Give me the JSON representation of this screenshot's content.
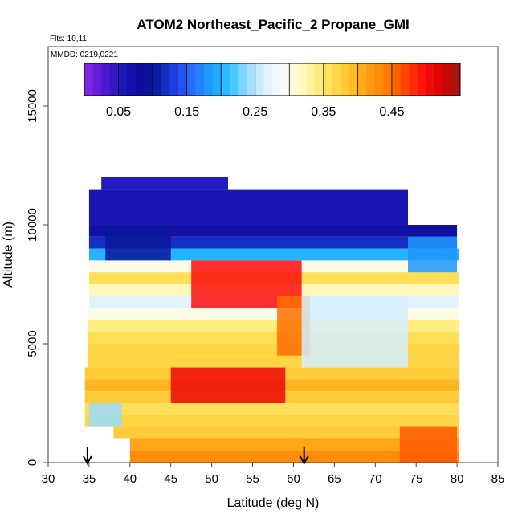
{
  "chart_data": {
    "type": "heatmap",
    "title": "ATOM2 Northeast_Pacific_2 Propane_GMI",
    "annotations": {
      "flights": "Flts: 10,11",
      "dates": "MMDD: 0219,0221"
    },
    "xlabel": "Latitude (deg N)",
    "ylabel": "Altitude (m)",
    "xlim": [
      30,
      85
    ],
    "ylim": [
      0,
      17500
    ],
    "xticks": [
      30,
      35,
      40,
      45,
      50,
      55,
      60,
      65,
      70,
      75,
      80,
      85
    ],
    "yticks": [
      0,
      5000,
      10000,
      15000
    ],
    "grid": false,
    "colorbar": {
      "placement": "top-inside",
      "range": [
        0.0,
        0.55
      ],
      "tick_values": [
        0.05,
        0.15,
        0.25,
        0.35,
        0.45
      ],
      "tick_labels": [
        "0.05",
        "0.15",
        "0.25",
        "0.35",
        "0.45"
      ],
      "colors": [
        "#8a2be2",
        "#5a18d8",
        "#1e1ac0",
        "#0c0c9a",
        "#0a1a9c",
        "#1d3de0",
        "#2a6cff",
        "#1d9dff",
        "#2ac0ff",
        "#8ed8ff",
        "#d8f0ff",
        "#f7fbff",
        "#fffacc",
        "#ffee80",
        "#ffd84a",
        "#ffbe26",
        "#ff9a12",
        "#ff7a00",
        "#ff4000",
        "#ff0e0e",
        "#d80000",
        "#9e1a1a"
      ]
    },
    "layers": [
      {
        "alt": [
          11500,
          12000
        ],
        "lat": [
          36.5,
          52
        ],
        "value": 0.05
      },
      {
        "alt": [
          10000,
          11500
        ],
        "lat": [
          35.0,
          74.0
        ],
        "value": 0.06
      },
      {
        "alt": [
          9500,
          10000
        ],
        "lat": [
          35.0,
          80.0
        ],
        "value": 0.07
      },
      {
        "alt": [
          9000,
          9500
        ],
        "lat": [
          35.0,
          80.0
        ],
        "value": 0.12
      },
      {
        "alt": [
          8500,
          9000
        ],
        "lat": [
          35.0,
          80.2
        ],
        "value": 0.2
      },
      {
        "alt": [
          8000,
          8500
        ],
        "lat": [
          35.0,
          80.2
        ],
        "value": 0.3
      },
      {
        "alt": [
          7500,
          8000
        ],
        "lat": [
          35.0,
          80.2
        ],
        "value": 0.36
      },
      {
        "alt": [
          7000,
          7500
        ],
        "lat": [
          35.0,
          80.2
        ],
        "value": 0.32
      },
      {
        "alt": [
          6500,
          7000
        ],
        "lat": [
          35.0,
          80.2
        ],
        "value": 0.27
      },
      {
        "alt": [
          6000,
          6500
        ],
        "lat": [
          34.8,
          80.2
        ],
        "value": 0.3
      },
      {
        "alt": [
          5500,
          6000
        ],
        "lat": [
          34.8,
          80.2
        ],
        "value": 0.34
      },
      {
        "alt": [
          5000,
          5500
        ],
        "lat": [
          34.8,
          80.2
        ],
        "value": 0.36
      },
      {
        "alt": [
          4500,
          5000
        ],
        "lat": [
          34.8,
          80.2
        ],
        "value": 0.37
      },
      {
        "alt": [
          4000,
          4500
        ],
        "lat": [
          34.8,
          80.2
        ],
        "value": 0.37
      },
      {
        "alt": [
          3500,
          4000
        ],
        "lat": [
          34.5,
          80.2
        ],
        "value": 0.38
      },
      {
        "alt": [
          3000,
          3500
        ],
        "lat": [
          34.5,
          80.2
        ],
        "value": 0.4
      },
      {
        "alt": [
          2500,
          3000
        ],
        "lat": [
          34.5,
          80.2
        ],
        "value": 0.38
      },
      {
        "alt": [
          2000,
          2500
        ],
        "lat": [
          34.5,
          80.2
        ],
        "value": 0.36
      },
      {
        "alt": [
          1500,
          2000
        ],
        "lat": [
          34.5,
          80.2
        ],
        "value": 0.37
      },
      {
        "alt": [
          1000,
          1500
        ],
        "lat": [
          38.0,
          80.2
        ],
        "value": 0.38
      },
      {
        "alt": [
          500,
          1000
        ],
        "lat": [
          40.0,
          80.2
        ],
        "value": 0.41
      },
      {
        "alt": [
          0,
          500
        ],
        "lat": [
          40.0,
          80.2
        ],
        "value": 0.43
      }
    ],
    "hotspots": [
      {
        "lat": [
          47.5,
          61
        ],
        "alt": [
          6500,
          8500
        ],
        "value": 0.5
      },
      {
        "lat": [
          45,
          59
        ],
        "alt": [
          2500,
          4000
        ],
        "value": 0.51
      },
      {
        "lat": [
          58,
          62
        ],
        "alt": [
          4500,
          7000
        ],
        "value": 0.45
      },
      {
        "lat": [
          37,
          45
        ],
        "alt": [
          8500,
          10000
        ],
        "value": 0.1
      },
      {
        "lat": [
          61,
          74
        ],
        "alt": [
          4000,
          7000
        ],
        "value": 0.26
      },
      {
        "lat": [
          74,
          80
        ],
        "alt": [
          8000,
          9500
        ],
        "value": 0.18
      },
      {
        "lat": [
          35,
          39
        ],
        "alt": [
          1500,
          2500
        ],
        "value": 0.24
      },
      {
        "lat": [
          73,
          80
        ],
        "alt": [
          0,
          1500
        ],
        "value": 0.46
      }
    ],
    "markers": [
      {
        "lat": 34.8,
        "label": ""
      },
      {
        "lat": 61.3,
        "label": ""
      }
    ]
  }
}
